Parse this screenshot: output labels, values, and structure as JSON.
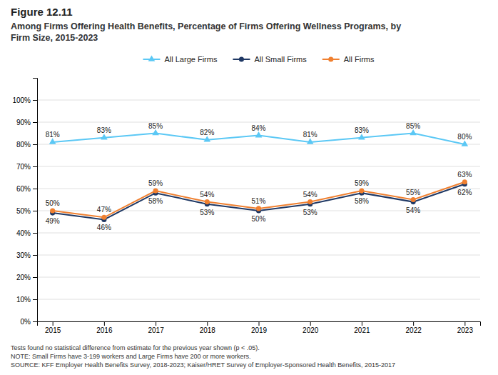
{
  "chart_data": {
    "type": "line",
    "title": "Figure 12.11",
    "subtitle": "Among Firms Offering Health Benefits, Percentage of Firms Offering Wellness Programs, by\nFirm Size, 2015-2023",
    "annotations": [
      "Tests found no statistical difference from estimate for the previous year shown (p < .05).",
      "NOTE: Small Firms have 3-199 workers and Large Firms have 200 or more workers.",
      "SOURCE: KFF Employer Health Benefits Survey, 2018-2023; Kaiser/HRET Survey of Employer-Sponsored Health Benefits, 2015-2017"
    ],
    "x": [
      2015,
      2016,
      2017,
      2018,
      2019,
      2020,
      2021,
      2022,
      2023
    ],
    "xlim": [
      2014.7,
      2023.3
    ],
    "xticks": [
      2015,
      2016,
      2017,
      2018,
      2019,
      2020,
      2021,
      2022,
      2023
    ],
    "ylim": [
      0,
      110
    ],
    "yticks": [
      {
        "value": 0,
        "label": "0%"
      },
      {
        "value": 10,
        "label": "10%"
      },
      {
        "value": 20,
        "label": "20%"
      },
      {
        "value": 30,
        "label": "30%"
      },
      {
        "value": 40,
        "label": "40%"
      },
      {
        "value": 50,
        "label": "50%"
      },
      {
        "value": 60,
        "label": "60%"
      },
      {
        "value": 70,
        "label": "70%"
      },
      {
        "value": 80,
        "label": "80%"
      },
      {
        "value": 90,
        "label": "90%"
      },
      {
        "value": 100,
        "label": "100%"
      }
    ],
    "grid": true,
    "legend": "top",
    "data_labels": true,
    "line_style": "solid",
    "series": [
      {
        "name": "All Large Firms",
        "color": "#5bc8f5",
        "marker": "triangle",
        "values": [
          81,
          83,
          85,
          82,
          84,
          81,
          83,
          85,
          80
        ],
        "value_labels": [
          "81%",
          "83%",
          "85%",
          "82%",
          "84%",
          "81%",
          "83%",
          "85%",
          "80%"
        ]
      },
      {
        "name": "All Small Firms",
        "color": "#1f3864",
        "marker": "circle",
        "values": [
          49,
          46,
          58,
          53,
          50,
          53,
          58,
          54,
          62
        ],
        "value_labels": [
          "49%",
          "46%",
          "58%",
          "53%",
          "50%",
          "53%",
          "58%",
          "54%",
          "62%"
        ]
      },
      {
        "name": "All Firms",
        "color": "#f08030",
        "marker": "circle",
        "values": [
          50,
          47,
          59,
          54,
          51,
          54,
          59,
          55,
          63
        ],
        "value_labels": [
          "50%",
          "47%",
          "59%",
          "54%",
          "51%",
          "54%",
          "59%",
          "55%",
          "63%"
        ]
      }
    ]
  }
}
